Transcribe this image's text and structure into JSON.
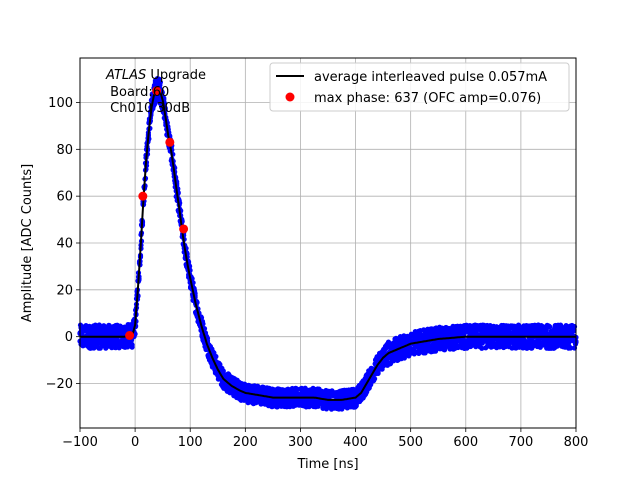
{
  "chart_data": {
    "type": "scatter",
    "title": "",
    "xlabel": "Time [ns]",
    "ylabel": "Amplitude [ADC Counts]",
    "xlim": [
      -100,
      800
    ],
    "ylim": [
      -39,
      119
    ],
    "xticks": [
      -100,
      0,
      100,
      200,
      300,
      400,
      500,
      600,
      700,
      800
    ],
    "yticks": [
      -20,
      0,
      20,
      40,
      60,
      80,
      100
    ],
    "grid": true,
    "legend_position": "top-right",
    "annotation": {
      "italic": "ATLAS",
      "line1": " Upgrade",
      "line2": " Board:60",
      "line3": " Ch010 30dB"
    },
    "series": [
      {
        "name": "",
        "kind": "scatter-band",
        "color": "#0000ff",
        "x": [
          -100,
          -20,
          -5,
          0,
          5,
          10,
          15,
          20,
          25,
          30,
          35,
          40,
          45,
          50,
          55,
          60,
          65,
          70,
          75,
          80,
          85,
          90,
          95,
          100,
          110,
          120,
          130,
          140,
          150,
          160,
          175,
          190,
          200,
          225,
          250,
          275,
          300,
          325,
          350,
          375,
          400,
          410,
          420,
          430,
          440,
          450,
          460,
          480,
          500,
          525,
          550,
          575,
          600,
          650,
          700,
          750,
          800
        ],
        "y_center": [
          0,
          0,
          0.5,
          5,
          20,
          38,
          58,
          75,
          88,
          98,
          104,
          106,
          105,
          101,
          94,
          86,
          80,
          72,
          63,
          55,
          46,
          38,
          31,
          25,
          14,
          5,
          -3,
          -9,
          -14,
          -18,
          -21,
          -23,
          -24,
          -25,
          -26,
          -26,
          -26,
          -26,
          -27,
          -27,
          -26,
          -24,
          -20,
          -16,
          -12,
          -9,
          -7,
          -5,
          -3,
          -2,
          -1,
          -0.5,
          0,
          0,
          0,
          0,
          0
        ],
        "half_width": [
          5,
          5,
          5,
          4,
          4,
          4,
          4,
          4,
          4,
          4,
          5,
          5,
          5,
          4,
          4,
          4,
          4,
          4,
          4,
          4,
          4,
          4,
          4,
          4,
          4,
          4,
          4,
          4,
          4,
          4,
          4,
          4,
          4,
          4,
          4,
          4,
          4,
          4,
          4,
          4,
          4,
          4,
          4,
          4,
          4,
          5,
          5,
          5,
          5,
          5,
          5,
          5,
          5,
          5,
          5,
          5,
          5
        ]
      },
      {
        "name": "average interleaved pulse 0.057mA",
        "kind": "line",
        "color": "#000000",
        "x": [
          -100,
          -20,
          -5,
          0,
          5,
          10,
          15,
          20,
          25,
          30,
          35,
          40,
          45,
          50,
          55,
          60,
          65,
          70,
          75,
          80,
          85,
          90,
          95,
          100,
          110,
          120,
          130,
          140,
          150,
          160,
          175,
          190,
          200,
          225,
          250,
          275,
          300,
          325,
          350,
          375,
          400,
          410,
          420,
          430,
          440,
          450,
          460,
          480,
          500,
          525,
          550,
          575,
          600,
          650,
          700,
          750,
          800
        ],
        "y": [
          0,
          0,
          0.5,
          5,
          20,
          38,
          58,
          75,
          88,
          98,
          104,
          106,
          105,
          101,
          94,
          86,
          80,
          72,
          63,
          55,
          46,
          38,
          31,
          25,
          14,
          5,
          -3,
          -9,
          -14,
          -18,
          -21,
          -23,
          -24,
          -25,
          -26,
          -26,
          -26,
          -26,
          -27,
          -27,
          -26,
          -24,
          -20,
          -16,
          -12,
          -9,
          -7,
          -5,
          -3,
          -2,
          -1,
          -0.5,
          0,
          0,
          0,
          0,
          0
        ]
      },
      {
        "name": "max phase: 637 (OFC amp=0.076)",
        "kind": "markers",
        "color": "#ff0000",
        "x": [
          -10,
          14,
          39,
          63,
          88
        ],
        "y": [
          0.5,
          60,
          105,
          83,
          46
        ]
      }
    ]
  }
}
